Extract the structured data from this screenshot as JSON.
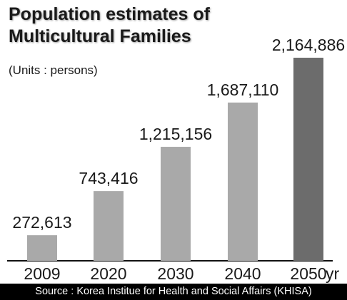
{
  "chart_data": {
    "type": "bar",
    "title_lines": [
      "Population estimates of",
      "Multicultural Families"
    ],
    "subtitle": "(Units : persons)",
    "categories": [
      "2009",
      "2020",
      "2030",
      "2040",
      "2050"
    ],
    "values": [
      272613,
      743416,
      1215156,
      1687110,
      2164886
    ],
    "data_labels": [
      "272,613",
      "743,416",
      "1,215,156",
      "1,687,110",
      "2,164,886"
    ],
    "x_unit_suffix": "yr",
    "ylim": [
      0,
      2164886
    ],
    "grid": false,
    "legend": "none",
    "source": "Source : Korea Institue for Health and Social Affairs (KHISA)"
  },
  "colors": {
    "bar": "#a9a9a9",
    "bar_last": "#6c6c6c",
    "axis": "#111111",
    "text": "#1a1a1a"
  }
}
